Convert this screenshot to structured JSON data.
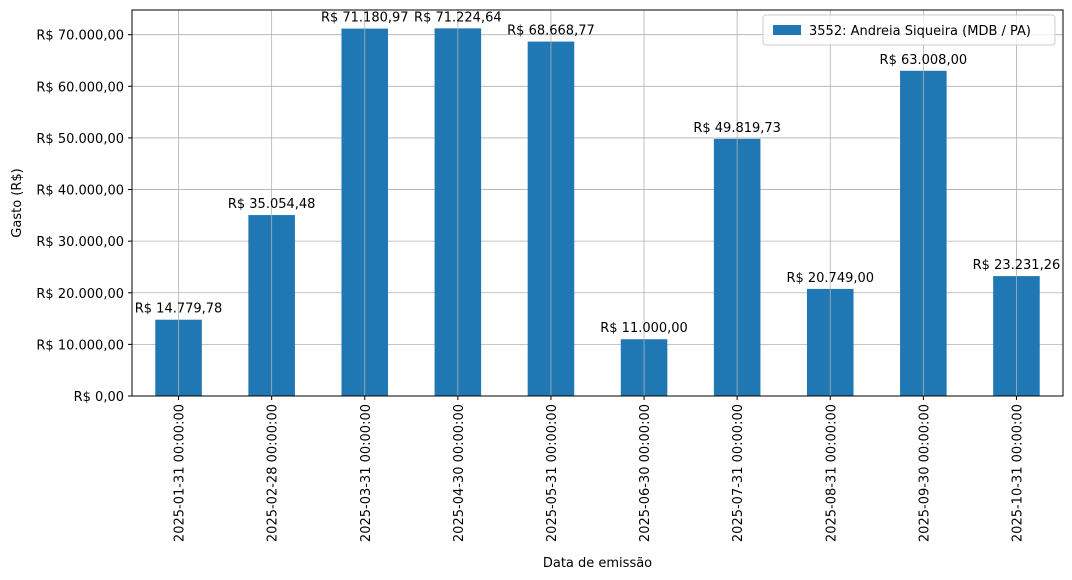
{
  "chart_data": {
    "type": "bar",
    "categories": [
      "2025-01-31 00:00:00",
      "2025-02-28 00:00:00",
      "2025-03-31 00:00:00",
      "2025-04-30 00:00:00",
      "2025-05-31 00:00:00",
      "2025-06-30 00:00:00",
      "2025-07-31 00:00:00",
      "2025-08-31 00:00:00",
      "2025-09-30 00:00:00",
      "2025-10-31 00:00:00"
    ],
    "series": [
      {
        "name": "3552: Andreia Siqueira (MDB / PA)",
        "color": "#1f77b4",
        "values": [
          14779.78,
          35054.48,
          71180.97,
          71224.64,
          68668.77,
          11000.0,
          49819.73,
          20749.0,
          63008.0,
          23231.26
        ],
        "data_labels": [
          "R$ 14.779,78",
          "R$ 35.054,48",
          "R$ 71.180,97",
          "R$ 71.224,64",
          "R$ 68.668,77",
          "R$ 11.000,00",
          "R$ 49.819,73",
          "R$ 20.749,00",
          "R$ 63.008,00",
          "R$ 23.231,26"
        ]
      }
    ],
    "title": "",
    "xlabel": "Data de emissão",
    "ylabel": "Gasto (R$)",
    "ylim": [
      0,
      74786
    ],
    "yticks": [
      0,
      10000,
      20000,
      30000,
      40000,
      50000,
      60000,
      70000
    ],
    "ytick_labels": [
      "R$ 0,00",
      "R$ 10.000,00",
      "R$ 20.000,00",
      "R$ 30.000,00",
      "R$ 40.000,00",
      "R$ 50.000,00",
      "R$ 60.000,00",
      "R$ 70.000,00"
    ],
    "grid": true,
    "legend": "top-right"
  }
}
